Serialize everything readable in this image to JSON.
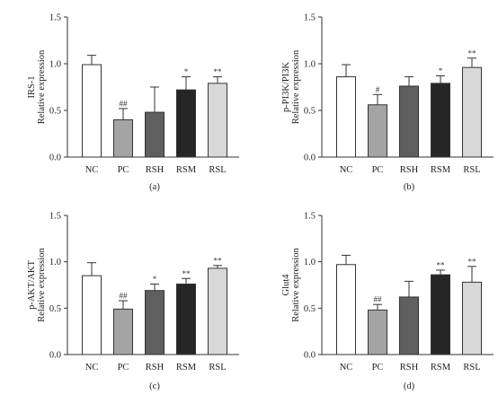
{
  "chart_data": [
    {
      "type": "bar",
      "panel_label": "(a)",
      "ylabel_lines": [
        "IRS-1",
        "Relative expression"
      ],
      "categories": [
        "NC",
        "PC",
        "RSH",
        "RSM",
        "RSL"
      ],
      "values": [
        0.99,
        0.4,
        0.48,
        0.72,
        0.79
      ],
      "errors": [
        0.1,
        0.12,
        0.27,
        0.14,
        0.07
      ],
      "significance": [
        "",
        "##",
        "",
        "*",
        "**"
      ],
      "ylim": [
        0.0,
        1.5
      ],
      "yticks": [
        "0.0",
        "0.5",
        "1.0",
        "1.5"
      ]
    },
    {
      "type": "bar",
      "panel_label": "(b)",
      "ylabel_lines": [
        "p-PI3K/PI3K",
        "Relative expression"
      ],
      "categories": [
        "NC",
        "PC",
        "RSH",
        "RSM",
        "RSL"
      ],
      "values": [
        0.86,
        0.56,
        0.76,
        0.79,
        0.96
      ],
      "errors": [
        0.13,
        0.11,
        0.1,
        0.08,
        0.1
      ],
      "significance": [
        "",
        "#",
        "",
        "*",
        "**"
      ],
      "ylim": [
        0.0,
        1.5
      ],
      "yticks": [
        "0.0",
        "0.5",
        "1.0",
        "1.5"
      ]
    },
    {
      "type": "bar",
      "panel_label": "(c)",
      "ylabel_lines": [
        "p-AKT/AKT",
        "Relative expression"
      ],
      "categories": [
        "NC",
        "PC",
        "RSH",
        "RSM",
        "RSL"
      ],
      "values": [
        0.85,
        0.49,
        0.69,
        0.76,
        0.93
      ],
      "errors": [
        0.14,
        0.09,
        0.07,
        0.06,
        0.03
      ],
      "significance": [
        "",
        "##",
        "*",
        "**",
        "**"
      ],
      "ylim": [
        0.0,
        1.5
      ],
      "yticks": [
        "0.0",
        "0.5",
        "1.0",
        "1.5"
      ]
    },
    {
      "type": "bar",
      "panel_label": "(d)",
      "ylabel_lines": [
        "Glut4",
        "Relative expression"
      ],
      "categories": [
        "NC",
        "PC",
        "RSH",
        "RSM",
        "RSL"
      ],
      "values": [
        0.97,
        0.48,
        0.62,
        0.86,
        0.78
      ],
      "errors": [
        0.1,
        0.06,
        0.17,
        0.05,
        0.17
      ],
      "significance": [
        "",
        "##",
        "",
        "**",
        "**"
      ],
      "ylim": [
        0.0,
        1.5
      ],
      "yticks": [
        "0.0",
        "0.5",
        "1.0",
        "1.5"
      ]
    }
  ],
  "bar_colors": [
    "#ffffff",
    "#a4a4a4",
    "#5f5f5f",
    "#262626",
    "#d8d8d8"
  ],
  "axis_color": "#333333"
}
